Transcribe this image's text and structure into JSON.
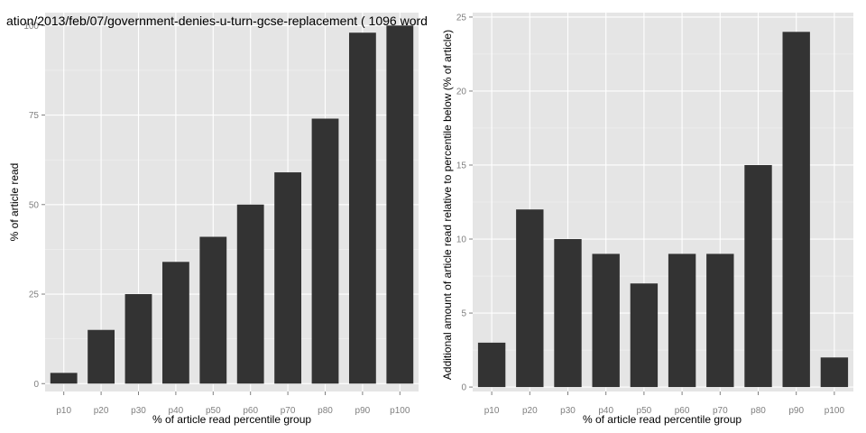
{
  "colors": {
    "panel_bg": "#e5e5e5",
    "grid_major": "#ffffff",
    "grid_minor": "#f2f2f2",
    "bar_fill": "#333333",
    "tick_text": "#7f7f7f"
  },
  "chart_data": [
    {
      "type": "bar",
      "title": "ation/2013/feb/07/government-denies-u-turn-gcse-replacement ( 1096 word",
      "xlabel": "% of article read percentile group",
      "ylabel": "% of article read",
      "categories": [
        "p10",
        "p20",
        "p30",
        "p40",
        "p50",
        "p60",
        "p70",
        "p80",
        "p90",
        "p100"
      ],
      "values": [
        3,
        15,
        25,
        34,
        41,
        50,
        59,
        74,
        98,
        100
      ],
      "ylim": [
        -2.2,
        103.6
      ],
      "yticks": [
        0,
        25,
        50,
        75,
        100
      ],
      "ytick_labels": [
        "0",
        "25",
        "50",
        "75",
        "100"
      ],
      "grid": true,
      "legend": "none"
    },
    {
      "type": "bar",
      "title": "",
      "xlabel": "% of article read percentile group",
      "ylabel": "Additional amount of article read relative to percentile below (% of article)",
      "categories": [
        "p10",
        "p20",
        "p30",
        "p40",
        "p50",
        "p60",
        "p70",
        "p80",
        "p90",
        "p100"
      ],
      "values": [
        3,
        12,
        10,
        9,
        7,
        9,
        9,
        15,
        24,
        2
      ],
      "ylim": [
        -0.3,
        25.3
      ],
      "yticks": [
        0,
        5,
        10,
        15,
        20,
        25
      ],
      "ytick_labels": [
        "0",
        "5",
        "10",
        "15",
        "20",
        "25"
      ],
      "grid": true,
      "legend": "none"
    }
  ]
}
